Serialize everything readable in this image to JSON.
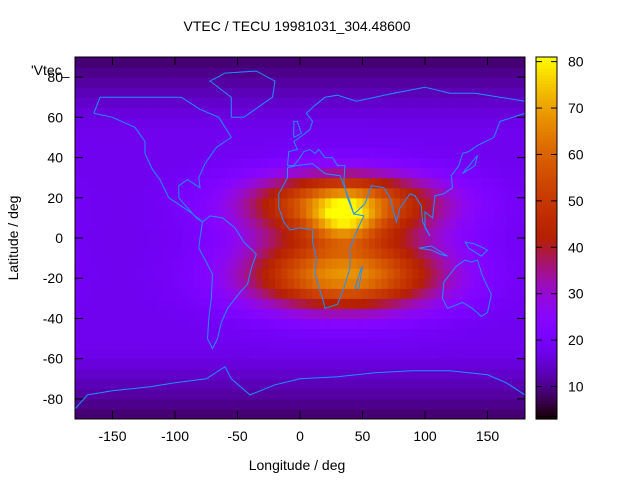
{
  "chart_data": {
    "type": "heatmap",
    "title": "VTEC / TECU 19981031_304.48600",
    "xlabel": "Longitude / deg",
    "ylabel": "Latitude / deg",
    "xlim": [
      -180,
      180
    ],
    "ylim": [
      -90,
      90
    ],
    "x_ticks": [
      -150,
      -100,
      -50,
      0,
      50,
      100,
      150
    ],
    "y_ticks": [
      -80,
      -60,
      -40,
      -20,
      0,
      20,
      40,
      60,
      80
    ],
    "legend_entry": "'Vtec_",
    "legend_placement": "top-left",
    "colorbar": {
      "range": [
        3,
        81
      ],
      "ticks": [
        10,
        20,
        30,
        40,
        50,
        60,
        70,
        80
      ],
      "palette": "black-purple-red-orange-yellow"
    },
    "grid": false,
    "overlay": "coastlines",
    "overlay_color": "#1e90ff",
    "features": {
      "background_level": 18,
      "polar_level": 8,
      "peak": {
        "lon": 35,
        "lat": 10,
        "value": 81
      },
      "anomaly_crest_north": {
        "lat": 18,
        "value": 55
      },
      "anomaly_crest_south": {
        "lat": -20,
        "value": 58
      }
    }
  }
}
